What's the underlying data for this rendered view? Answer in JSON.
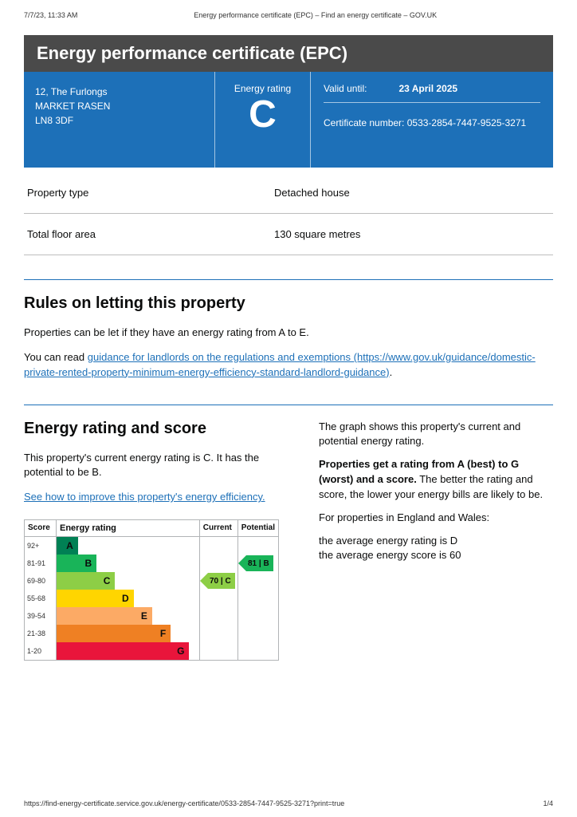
{
  "print": {
    "datetime": "7/7/23, 11:33 AM",
    "headerTitle": "Energy performance certificate (EPC) – Find an energy certificate – GOV.UK",
    "footerUrl": "https://find-energy-certificate.service.gov.uk/energy-certificate/0533-2854-7447-9525-3271?print=true",
    "pageNum": "1/4"
  },
  "title": "Energy performance certificate (EPC)",
  "header": {
    "addressLines": [
      "12, The Furlongs",
      "MARKET RASEN",
      "LN8 3DF"
    ],
    "ratingLabel": "Energy rating",
    "ratingLetter": "C",
    "validLabel": "Valid until:",
    "validDate": "23 April 2025",
    "certLabel": "Certificate number:",
    "certNumber": "0533-2854-7447-9525-3271"
  },
  "summary": [
    {
      "k": "Property type",
      "v": "Detached house"
    },
    {
      "k": "Total floor area",
      "v": "130 square metres"
    }
  ],
  "rules": {
    "heading": "Rules on letting this property",
    "para1": "Properties can be let if they have an energy rating from A to E.",
    "para2_prefix": "You can read ",
    "linkText": "guidance for landlords on the regulations and exemptions (https://www.gov.uk/guidance/domestic-private-rented-property-minimum-energy-efficiency-standard-landlord-guidance)",
    "para2_suffix": "."
  },
  "ratingSection": {
    "heading": "Energy rating and score",
    "leftPara": "This property's current energy rating is C. It has the potential to be B.",
    "improveLink": "See how to improve this property's energy efficiency.",
    "right_p1": "The graph shows this property's current and potential energy rating.",
    "right_p2_html": [
      "Properties get a rating from A (best) to G (worst) and a score.",
      " The better the rating and score, the lower your energy bills are likely to be."
    ],
    "right_p3": "For properties in England and Wales:",
    "right_avg1": "the average energy rating is D",
    "right_avg2": "the average energy score is 60"
  },
  "chart": {
    "headers": {
      "score": "Score",
      "rating": "Energy rating",
      "current": "Current",
      "potential": "Potential"
    },
    "bands": [
      {
        "range": "92+",
        "letter": "A",
        "color": "#008054",
        "widthPct": 15
      },
      {
        "range": "81-91",
        "letter": "B",
        "color": "#19b459",
        "widthPct": 28
      },
      {
        "range": "69-80",
        "letter": "C",
        "color": "#8dce46",
        "widthPct": 41
      },
      {
        "range": "55-68",
        "letter": "D",
        "color": "#ffd500",
        "widthPct": 54
      },
      {
        "range": "39-54",
        "letter": "E",
        "color": "#fcaa65",
        "widthPct": 67
      },
      {
        "range": "21-38",
        "letter": "F",
        "color": "#ef8023",
        "widthPct": 80
      },
      {
        "range": "1-20",
        "letter": "G",
        "color": "#e9153b",
        "widthPct": 93
      }
    ],
    "current": {
      "score": 70,
      "letter": "C",
      "bandIndex": 2,
      "color": "#8dce46"
    },
    "potential": {
      "score": 81,
      "letter": "B",
      "bandIndex": 1,
      "color": "#19b459"
    }
  }
}
